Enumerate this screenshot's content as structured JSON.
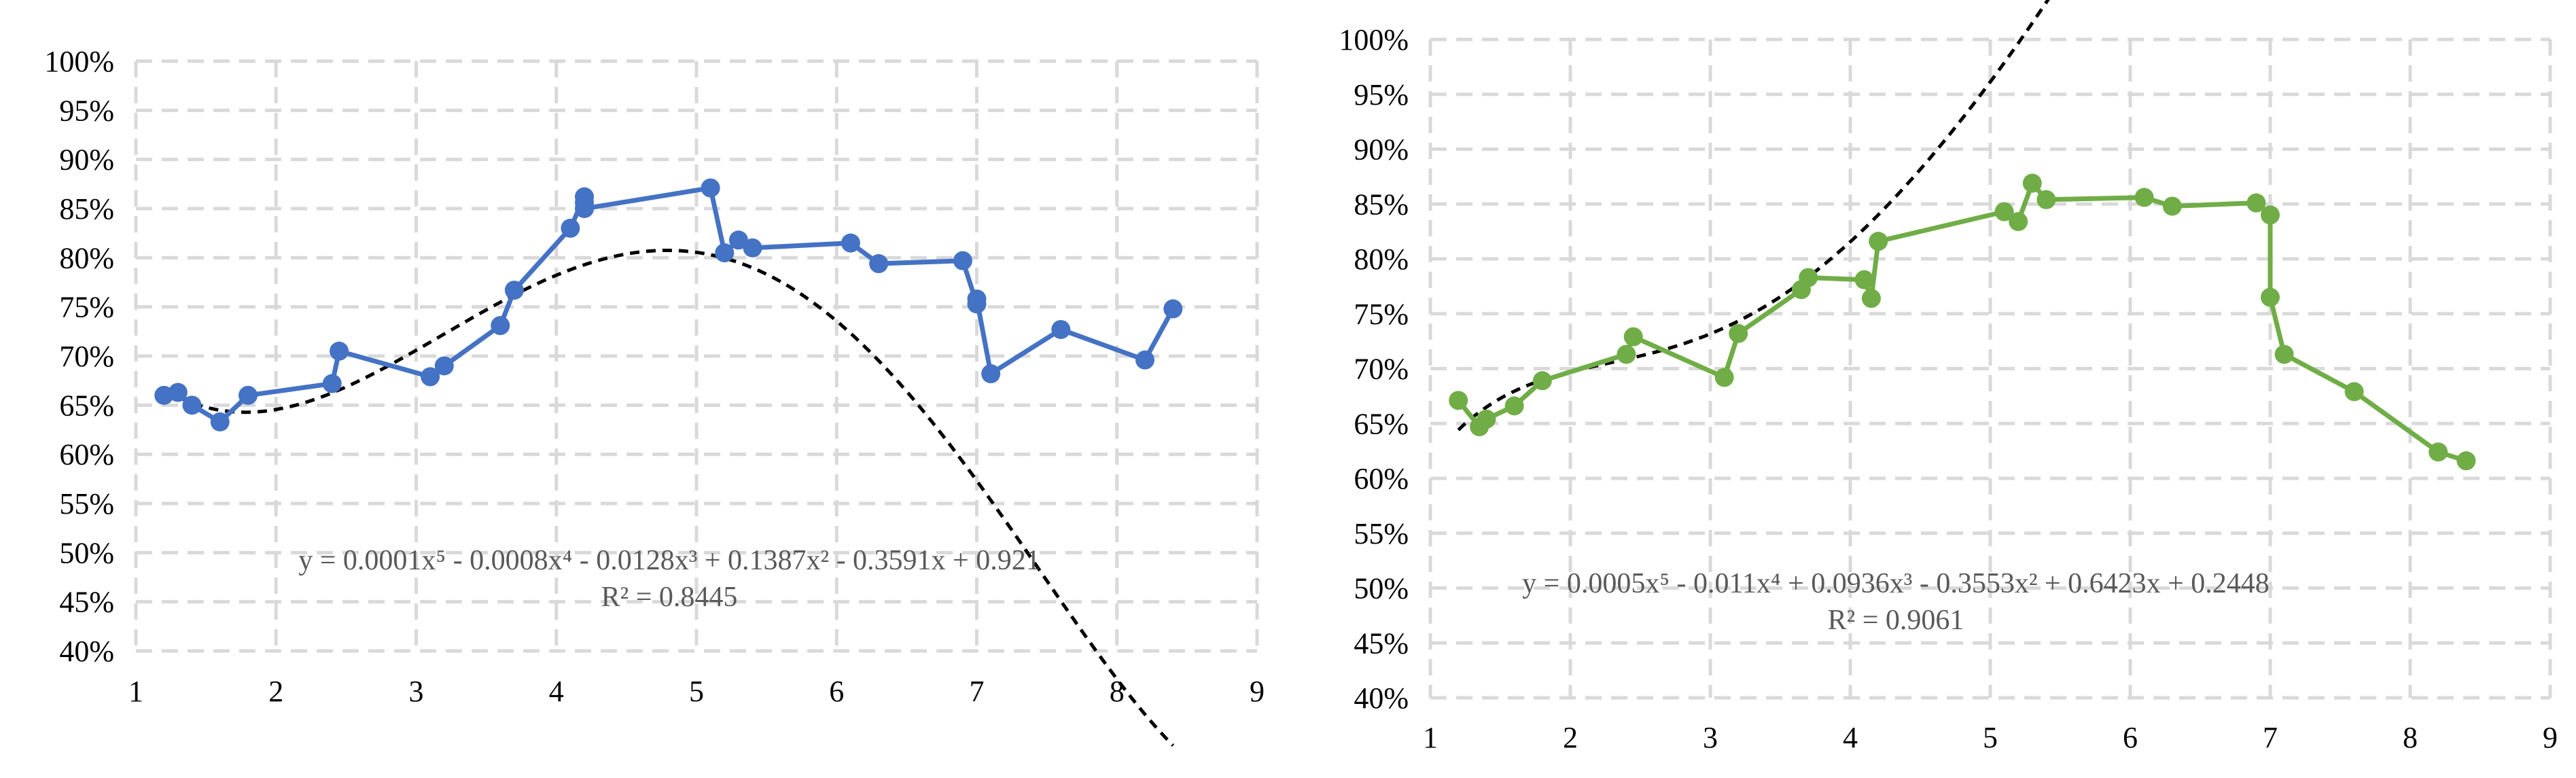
{
  "chart_data": [
    {
      "type": "scatter",
      "color": "#4472c4",
      "trend_color": "#000000",
      "xlim": [
        1,
        9
      ],
      "ylim": [
        0.4,
        1.0
      ],
      "x_ticks": [
        "1",
        "2",
        "3",
        "4",
        "5",
        "6",
        "7",
        "8",
        "9"
      ],
      "y_ticks": [
        "40%",
        "45%",
        "50%",
        "55%",
        "60%",
        "65%",
        "70%",
        "75%",
        "80%",
        "85%",
        "90%",
        "95%",
        "100%"
      ],
      "grid": true,
      "equation": "y = 0.0001x⁵ - 0.0008x⁴ - 0.0128x³ + 0.1387x² - 0.3591x + 0.921",
      "r_squared": "R² = 0.8445",
      "trend_coefficients": [
        0.0001,
        -0.0008,
        -0.0128,
        0.1387,
        -0.3591,
        0.921
      ],
      "trend_x_range": [
        1.2,
        8.4
      ],
      "points": [
        {
          "x": 1.2,
          "y": 0.66
        },
        {
          "x": 1.3,
          "y": 0.663
        },
        {
          "x": 1.4,
          "y": 0.65
        },
        {
          "x": 1.6,
          "y": 0.633
        },
        {
          "x": 1.8,
          "y": 0.66
        },
        {
          "x": 2.4,
          "y": 0.672
        },
        {
          "x": 2.45,
          "y": 0.705
        },
        {
          "x": 3.1,
          "y": 0.679
        },
        {
          "x": 3.2,
          "y": 0.69
        },
        {
          "x": 3.6,
          "y": 0.731
        },
        {
          "x": 3.7,
          "y": 0.767
        },
        {
          "x": 4.1,
          "y": 0.83
        },
        {
          "x": 4.2,
          "y": 0.862
        },
        {
          "x": 4.2,
          "y": 0.856
        },
        {
          "x": 4.2,
          "y": 0.85
        },
        {
          "x": 5.1,
          "y": 0.871
        },
        {
          "x": 5.2,
          "y": 0.805
        },
        {
          "x": 5.3,
          "y": 0.818
        },
        {
          "x": 5.4,
          "y": 0.81
        },
        {
          "x": 6.1,
          "y": 0.815
        },
        {
          "x": 6.3,
          "y": 0.794
        },
        {
          "x": 6.9,
          "y": 0.797
        },
        {
          "x": 7.0,
          "y": 0.753
        },
        {
          "x": 7.0,
          "y": 0.758
        },
        {
          "x": 7.1,
          "y": 0.682
        },
        {
          "x": 7.6,
          "y": 0.727
        },
        {
          "x": 8.2,
          "y": 0.696
        },
        {
          "x": 8.4,
          "y": 0.748
        }
      ]
    },
    {
      "type": "scatter",
      "color": "#70ad47",
      "trend_color": "#000000",
      "xlim": [
        1,
        9
      ],
      "ylim": [
        0.4,
        1.0
      ],
      "x_ticks": [
        "1",
        "2",
        "3",
        "4",
        "5",
        "6",
        "7",
        "8",
        "9"
      ],
      "y_ticks": [
        "40%",
        "45%",
        "50%",
        "55%",
        "60%",
        "65%",
        "70%",
        "75%",
        "80%",
        "85%",
        "90%",
        "95%",
        "100%"
      ],
      "grid": true,
      "equation": "y = 0.0005x⁵ - 0.011x⁴ + 0.0936x³ - 0.3553x² + 0.6423x + 0.2448",
      "r_squared": "R² = 0.9061",
      "trend_coefficients": [
        0.0005,
        -0.011,
        0.0936,
        -0.3553,
        0.6423,
        0.2448
      ],
      "trend_x_range": [
        1.2,
        8.4
      ],
      "points": [
        {
          "x": 1.2,
          "y": 0.671
        },
        {
          "x": 1.35,
          "y": 0.647
        },
        {
          "x": 1.4,
          "y": 0.654
        },
        {
          "x": 1.6,
          "y": 0.666
        },
        {
          "x": 1.8,
          "y": 0.689
        },
        {
          "x": 2.4,
          "y": 0.713
        },
        {
          "x": 2.45,
          "y": 0.729
        },
        {
          "x": 3.1,
          "y": 0.692
        },
        {
          "x": 3.2,
          "y": 0.732
        },
        {
          "x": 3.65,
          "y": 0.772
        },
        {
          "x": 3.7,
          "y": 0.783
        },
        {
          "x": 4.1,
          "y": 0.781
        },
        {
          "x": 4.15,
          "y": 0.764
        },
        {
          "x": 4.2,
          "y": 0.816
        },
        {
          "x": 5.1,
          "y": 0.843
        },
        {
          "x": 5.2,
          "y": 0.834
        },
        {
          "x": 5.3,
          "y": 0.869
        },
        {
          "x": 5.4,
          "y": 0.854
        },
        {
          "x": 6.1,
          "y": 0.856
        },
        {
          "x": 6.3,
          "y": 0.848
        },
        {
          "x": 6.9,
          "y": 0.851
        },
        {
          "x": 7.0,
          "y": 0.84
        },
        {
          "x": 7.0,
          "y": 0.765
        },
        {
          "x": 7.1,
          "y": 0.713
        },
        {
          "x": 7.6,
          "y": 0.679
        },
        {
          "x": 8.2,
          "y": 0.624
        },
        {
          "x": 8.4,
          "y": 0.616
        }
      ]
    }
  ]
}
